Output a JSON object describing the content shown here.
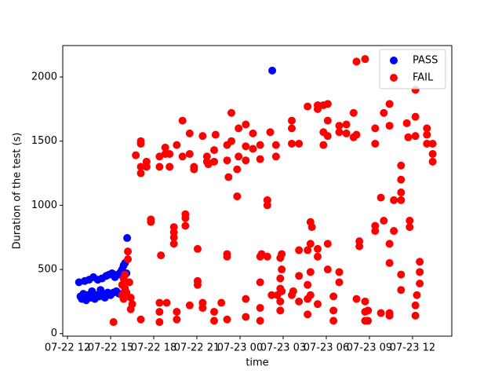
{
  "chart_data": {
    "type": "scatter",
    "xlabel": "time",
    "ylabel": "Duration of the test (s)",
    "xlim": [
      11.67,
      38.73
    ],
    "ylim": [
      -20,
      2245
    ],
    "xticks": [
      {
        "value": 12,
        "label": "07-22 12"
      },
      {
        "value": 15,
        "label": "07-22 15"
      },
      {
        "value": 18,
        "label": "07-22 18"
      },
      {
        "value": 21,
        "label": "07-22 21"
      },
      {
        "value": 24,
        "label": "07-23 00"
      },
      {
        "value": 27,
        "label": "07-23 03"
      },
      {
        "value": 30,
        "label": "07-23 06"
      },
      {
        "value": 33,
        "label": "07-23 09"
      },
      {
        "value": 36,
        "label": "07-23 12"
      }
    ],
    "yticks": [
      0,
      500,
      1000,
      1500,
      2000
    ],
    "legend": "upper right",
    "series": [
      {
        "name": "PASS",
        "color": "#0000ff",
        "x": [
          12.8,
          12.9,
          13.0,
          13.1,
          13.2,
          13.3,
          13.4,
          13.5,
          13.6,
          13.7,
          13.8,
          13.9,
          14.0,
          14.1,
          14.2,
          14.3,
          14.4,
          14.5,
          14.6,
          14.7,
          14.8,
          14.9,
          15.0,
          15.1,
          15.2,
          15.3,
          15.4,
          15.5,
          15.6,
          15.7,
          15.8,
          15.9,
          16.0,
          16.1,
          16.15,
          26.24
        ],
        "values": [
          400,
          290,
          270,
          310,
          410,
          260,
          300,
          420,
          280,
          330,
          440,
          270,
          300,
          420,
          290,
          340,
          430,
          310,
          280,
          450,
          320,
          460,
          300,
          470,
          320,
          440,
          330,
          460,
          310,
          480,
          500,
          530,
          550,
          470,
          745,
          2050
        ]
      },
      {
        "name": "FAIL",
        "color": "#ff0000",
        "x": [
          15.2,
          15.8,
          15.8,
          15.9,
          15.9,
          16.0,
          16.0,
          16.1,
          16.2,
          16.2,
          16.3,
          16.4,
          16.4,
          16.5,
          16.75,
          17.1,
          17.1,
          17.1,
          17.1,
          17.1,
          17.5,
          17.5,
          17.8,
          17.8,
          18.4,
          18.4,
          18.4,
          18.4,
          18.4,
          18.5,
          18.8,
          18.8,
          18.9,
          19.1,
          19.1,
          19.4,
          19.4,
          19.4,
          19.4,
          19.6,
          19.6,
          19.6,
          20.0,
          20.0,
          20.2,
          20.2,
          20.2,
          20.5,
          20.5,
          20.5,
          20.8,
          20.8,
          21.05,
          21.05,
          21.05,
          21.4,
          21.4,
          21.4,
          21.7,
          21.7,
          21.8,
          22.2,
          22.2,
          22.3,
          22.2,
          22.2,
          22.7,
          23.1,
          23.1,
          23.1,
          23.1,
          23.1,
          23.2,
          23.4,
          23.4,
          23.8,
          23.8,
          23.9,
          23.9,
          24.4,
          24.4,
          24.4,
          24.4,
          24.4,
          24.9,
          24.9,
          25.4,
          25.4,
          25.4,
          25.4,
          25.4,
          25.4,
          25.5,
          25.9,
          25.9,
          25.9,
          26.1,
          26.2,
          26.5,
          26.5,
          26.6,
          26.8,
          26.8,
          26.8,
          26.8,
          26.9,
          26.8,
          26.9,
          26.9,
          27.6,
          27.6,
          27.6,
          27.6,
          27.7,
          28.1,
          28.1,
          28.1,
          28.1,
          28.7,
          28.7,
          28.7,
          28.7,
          28.7,
          28.9,
          28.9,
          28.9,
          28.9,
          29.0,
          29.4,
          29.4,
          29.4,
          29.4,
          29.4,
          29.8,
          29.8,
          29.8,
          30.1,
          30.1,
          30.1,
          30.1,
          30.1,
          30.5,
          30.5,
          30.5,
          30.9,
          30.9,
          30.9,
          30.9,
          31.4,
          31.4,
          31.9,
          31.9,
          32.1,
          32.1,
          32.1,
          32.3,
          32.3,
          32.7,
          32.7,
          32.7,
          32.7,
          32.9,
          32.9,
          33.4,
          33.4,
          33.4,
          33.4,
          33.8,
          33.8,
          34.0,
          34.0,
          34.4,
          34.4,
          34.4,
          34.4,
          34.4,
          34.4,
          34.7,
          34.7,
          35.2,
          35.2,
          35.2,
          35.2,
          35.2,
          35.2,
          35.6,
          35.7,
          35.8,
          35.8,
          36.2,
          36.2,
          36.2,
          36.2,
          36.2,
          36.3,
          36.5,
          36.5,
          36.5,
          37.0,
          37.0,
          37.0,
          37.4,
          37.4,
          37.4
        ],
        "values": [
          90,
          300,
          380,
          430,
          270,
          460,
          350,
          320,
          580,
          640,
          400,
          190,
          280,
          230,
          1390,
          1250,
          1300,
          1480,
          1500,
          110,
          1300,
          1340,
          870,
          890,
          1300,
          1380,
          240,
          90,
          170,
          610,
          1400,
          1450,
          240,
          1300,
          1400,
          750,
          830,
          700,
          790,
          1470,
          110,
          170,
          1380,
          1660,
          840,
          930,
          900,
          1400,
          1560,
          220,
          1280,
          1300,
          410,
          380,
          660,
          1540,
          200,
          240,
          1340,
          1380,
          1320,
          1340,
          1430,
          1550,
          100,
          170,
          240,
          1350,
          1470,
          600,
          620,
          110,
          1220,
          1720,
          1500,
          1070,
          1280,
          1600,
          1380,
          1350,
          1630,
          1460,
          130,
          270,
          1440,
          1560,
          1360,
          1470,
          100,
          200,
          400,
          600,
          620,
          1000,
          1040,
          600,
          1570,
          300,
          1380,
          1470,
          300,
          180,
          250,
          350,
          430,
          500,
          590,
          620,
          330,
          1480,
          1600,
          1660,
          300,
          330,
          1480,
          650,
          450,
          250,
          1770,
          650,
          270,
          380,
          150,
          700,
          870,
          300,
          480,
          830,
          1750,
          1780,
          600,
          660,
          230,
          1470,
          1570,
          1780,
          1540,
          1660,
          1790,
          700,
          500,
          100,
          180,
          290,
          1570,
          1620,
          400,
          480,
          1560,
          1630,
          1720,
          1530,
          2120,
          1550,
          270,
          680,
          720,
          2140,
          100,
          170,
          250,
          100,
          180,
          1600,
          1480,
          800,
          840,
          1060,
          160,
          1720,
          880,
          1620,
          1790,
          550,
          700,
          140,
          160,
          1040,
          800,
          1040,
          1310,
          1200,
          1100,
          340,
          460,
          1640,
          1530,
          880,
          830,
          1900,
          1540,
          1690,
          140,
          220,
          300,
          390,
          480,
          560,
          1480,
          1600,
          1550,
          1340,
          1480,
          1400
        ]
      }
    ]
  }
}
